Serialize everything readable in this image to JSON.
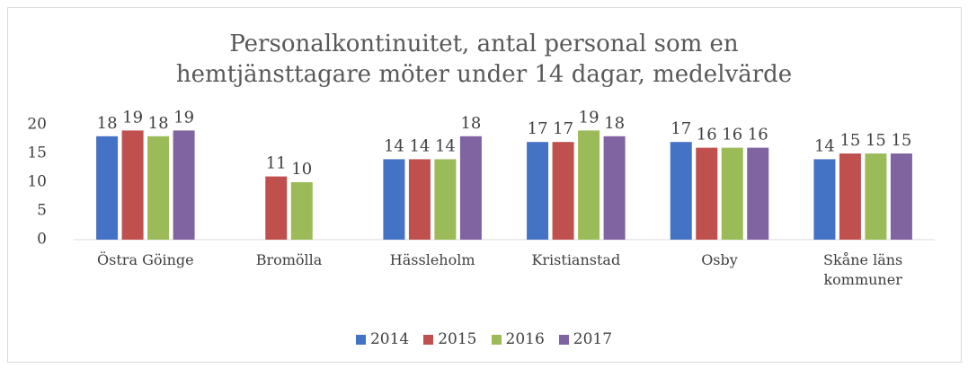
{
  "chart_data": {
    "type": "bar",
    "title": "Personalkontinuitet, antal personal som en hemtjänsttagare möter under 14 dagar, medelvärde",
    "categories": [
      "Östra Göinge",
      "Bromölla",
      "Hässleholm",
      "Kristianstad",
      "Osby",
      "Skåne läns kommuner"
    ],
    "series": [
      {
        "name": "2014",
        "color": "#4472c4",
        "values": [
          18,
          null,
          14,
          17,
          17,
          14
        ]
      },
      {
        "name": "2015",
        "color": "#c0504d",
        "values": [
          19,
          11,
          14,
          17,
          16,
          15
        ]
      },
      {
        "name": "2016",
        "color": "#9bbb59",
        "values": [
          18,
          10,
          14,
          19,
          16,
          15
        ]
      },
      {
        "name": "2017",
        "color": "#8064a2",
        "values": [
          19,
          null,
          18,
          18,
          16,
          15
        ]
      }
    ],
    "ylim": [
      0,
      20
    ],
    "yticks": [
      0,
      5,
      10,
      15,
      20
    ],
    "grid": false,
    "legend": "bottom"
  }
}
